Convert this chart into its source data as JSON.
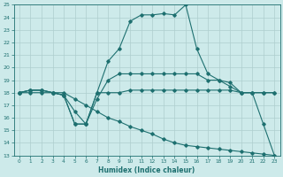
{
  "xlabel": "Humidex (Indice chaleur)",
  "xlim": [
    -0.5,
    23.5
  ],
  "ylim": [
    13,
    25
  ],
  "xticks": [
    0,
    1,
    2,
    3,
    4,
    5,
    6,
    7,
    8,
    9,
    10,
    11,
    12,
    13,
    14,
    15,
    16,
    17,
    18,
    19,
    20,
    21,
    22,
    23
  ],
  "yticks": [
    13,
    14,
    15,
    16,
    17,
    18,
    19,
    20,
    21,
    22,
    23,
    24,
    25
  ],
  "bg_color": "#cdeaea",
  "grid_color": "#aecece",
  "line_color": "#1e7070",
  "line1_x": [
    0,
    1,
    2,
    3,
    4,
    5,
    6,
    7,
    8,
    9,
    10,
    11,
    12,
    13,
    14,
    15,
    16,
    17,
    18,
    19,
    20,
    21,
    22,
    23
  ],
  "line1_y": [
    18,
    18.2,
    18.2,
    18,
    17.8,
    15.5,
    15.5,
    18,
    18,
    18,
    18.2,
    18.2,
    18.2,
    18.2,
    18.2,
    18.2,
    18.2,
    18.2,
    18.2,
    18.2,
    18.0,
    18.0,
    18.0,
    18.0
  ],
  "line2_x": [
    0,
    1,
    2,
    3,
    4,
    5,
    6,
    7,
    8,
    9,
    10,
    11,
    12,
    13,
    14,
    15,
    16,
    17,
    18,
    19,
    20,
    21,
    22,
    23
  ],
  "line2_y": [
    18,
    18.2,
    18.2,
    18,
    17.8,
    16.5,
    15.5,
    17.5,
    19.0,
    19.5,
    19.5,
    19.5,
    19.5,
    19.5,
    19.5,
    19.5,
    19.5,
    19.0,
    19.0,
    18.5,
    18.0,
    18.0,
    18.0,
    18.0
  ],
  "line3_x": [
    0,
    1,
    2,
    3,
    4,
    5,
    6,
    7,
    8,
    9,
    10,
    11,
    12,
    13,
    14,
    15,
    16,
    17,
    18,
    19,
    20,
    21,
    22,
    23
  ],
  "line3_y": [
    18,
    18.2,
    18.2,
    18,
    17.8,
    15.5,
    15.5,
    18.0,
    20.5,
    21.5,
    23.7,
    24.2,
    24.2,
    24.3,
    24.2,
    25.0,
    21.5,
    19.5,
    19.0,
    18.8,
    18.0,
    18.0,
    15.5,
    13.0
  ],
  "line4_x": [
    0,
    1,
    2,
    3,
    4,
    5,
    6,
    7,
    8,
    9,
    10,
    11,
    12,
    13,
    14,
    15,
    16,
    17,
    18,
    19,
    20,
    21,
    22,
    23
  ],
  "line4_y": [
    18,
    18,
    18,
    18,
    18,
    17.5,
    17.0,
    16.5,
    16.0,
    15.7,
    15.3,
    15.0,
    14.7,
    14.3,
    14.0,
    13.8,
    13.7,
    13.6,
    13.5,
    13.4,
    13.3,
    13.2,
    13.1,
    13.0
  ]
}
